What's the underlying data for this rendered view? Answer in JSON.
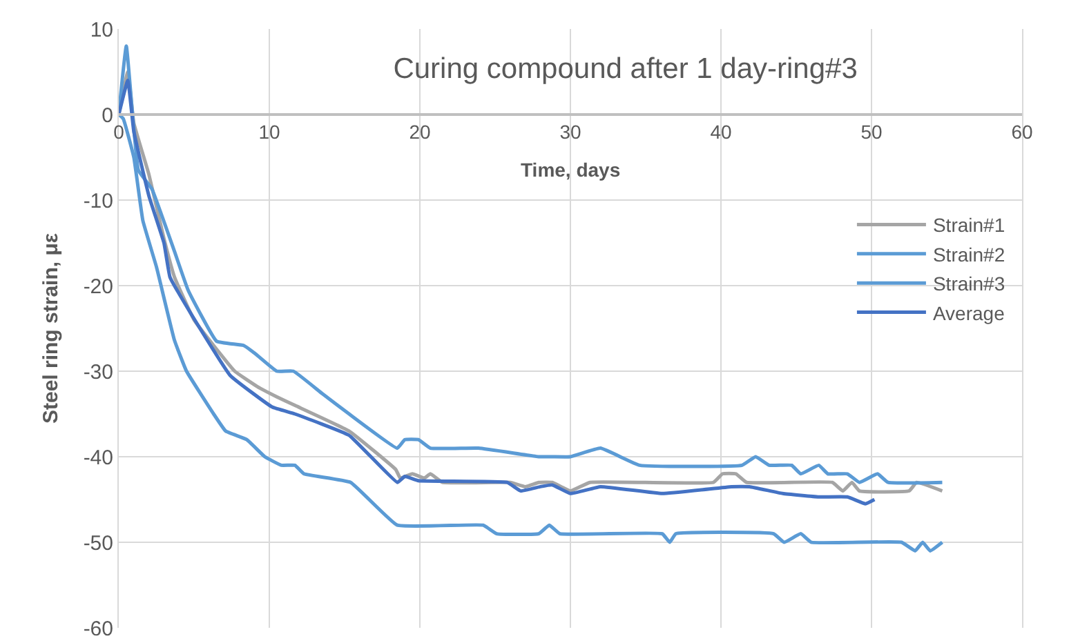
{
  "chart_data": {
    "type": "line",
    "title": "Curing compound after 1 day-ring#3",
    "xlabel": "Time, days",
    "ylabel": "Steel ring strain, με",
    "xlim": [
      0,
      60
    ],
    "xticks": [
      0,
      10,
      20,
      30,
      40,
      50,
      60
    ],
    "ylim": [
      -60,
      10
    ],
    "yticks": [
      -60,
      -50,
      -40,
      -30,
      -20,
      -10,
      0,
      10
    ],
    "grid": true,
    "legend": "right",
    "marker": "none",
    "line_style": "solid",
    "series": [
      {
        "name": "Strain#1",
        "color": "#a5a5a5",
        "x": [
          0,
          0.6,
          1,
          2,
          3,
          3.7,
          5,
          7.7,
          9.2,
          10.5,
          11.7,
          15.3,
          18.4,
          18.7,
          19.5,
          20.3,
          20.7,
          21.5,
          26,
          27,
          27.9,
          28.8,
          30,
          31.3,
          39.5,
          40.1,
          41,
          41.7,
          47.4,
          48.1,
          48.7,
          49.2,
          52.5,
          53,
          54.7
        ],
        "values": [
          0,
          5,
          -1,
          -7,
          -14.5,
          -19,
          -24,
          -30,
          -31.8,
          -33,
          -34,
          -37,
          -41.5,
          -42.5,
          -42,
          -42.5,
          -42,
          -43,
          -43,
          -43.5,
          -43,
          -43,
          -44,
          -43,
          -43,
          -42,
          -42,
          -43,
          -43,
          -44,
          -43,
          -44,
          -44,
          -43,
          -44
        ]
      },
      {
        "name": "Strain#2",
        "color": "#5b9bd5",
        "x": [
          0,
          0.5,
          1.3,
          2.2,
          3.7,
          4.6,
          6.5,
          8.3,
          9.1,
          10.5,
          11.6,
          13.5,
          15.3,
          18.5,
          19,
          19.9,
          20.7,
          23.9,
          27.9,
          28.8,
          30,
          32,
          34.6,
          41.4,
          42.3,
          43.2,
          44.7,
          45.3,
          46.5,
          47.1,
          48.4,
          49.2,
          50.4,
          51.1,
          54.7
        ],
        "values": [
          0,
          8,
          -6.5,
          -8.7,
          -16,
          -20.5,
          -26.5,
          -27,
          -28,
          -30,
          -30,
          -32.6,
          -35,
          -39,
          -38,
          -38,
          -39,
          -39,
          -40,
          -40,
          -40,
          -39,
          -41,
          -41,
          -40,
          -41,
          -41,
          -42,
          -41,
          -42,
          -42,
          -43,
          -42,
          -43,
          -43
        ]
      },
      {
        "name": "Strain#3",
        "color": "#5b9bd5",
        "x": [
          0,
          0.3,
          1,
          1.6,
          2.5,
          3.7,
          4.5,
          6.3,
          7.1,
          8.5,
          9.7,
          10.8,
          11.7,
          12.3,
          15.4,
          18.5,
          24.2,
          25.1,
          27.9,
          28.6,
          29.3,
          36.1,
          36.6,
          37,
          43.5,
          44.2,
          45.3,
          46,
          52,
          52.9,
          53.4,
          53.9,
          54.7
        ],
        "values": [
          0,
          -0.5,
          -5,
          -12.4,
          -17.8,
          -26.4,
          -30,
          -35,
          -37,
          -38,
          -40,
          -41,
          -41,
          -42,
          -43,
          -48,
          -48,
          -49,
          -49,
          -48,
          -49,
          -49,
          -50,
          -49,
          -49,
          -50,
          -49,
          -50,
          -50,
          -51,
          -50,
          -51,
          -50
        ]
      },
      {
        "name": "Average",
        "color": "#4472c4",
        "x": [
          0,
          0.6,
          1,
          2,
          3,
          3.4,
          4.7,
          7.4,
          10.2,
          11.7,
          15.3,
          18.5,
          19,
          19.9,
          25.8,
          26.7,
          28,
          28.8,
          30,
          32,
          36.1,
          40.7,
          41.9,
          44.1,
          46.5,
          48.4,
          49.6,
          50.2
        ],
        "values": [
          0,
          4,
          -2,
          -9.5,
          -15,
          -19,
          -23,
          -30.5,
          -34.2,
          -35,
          -37.5,
          -43,
          -42.3,
          -42.8,
          -43,
          -44,
          -43.5,
          -43.3,
          -44.3,
          -43.5,
          -44.3,
          -43.5,
          -43.5,
          -44.3,
          -44.7,
          -44.7,
          -45.5,
          -45
        ]
      }
    ]
  }
}
